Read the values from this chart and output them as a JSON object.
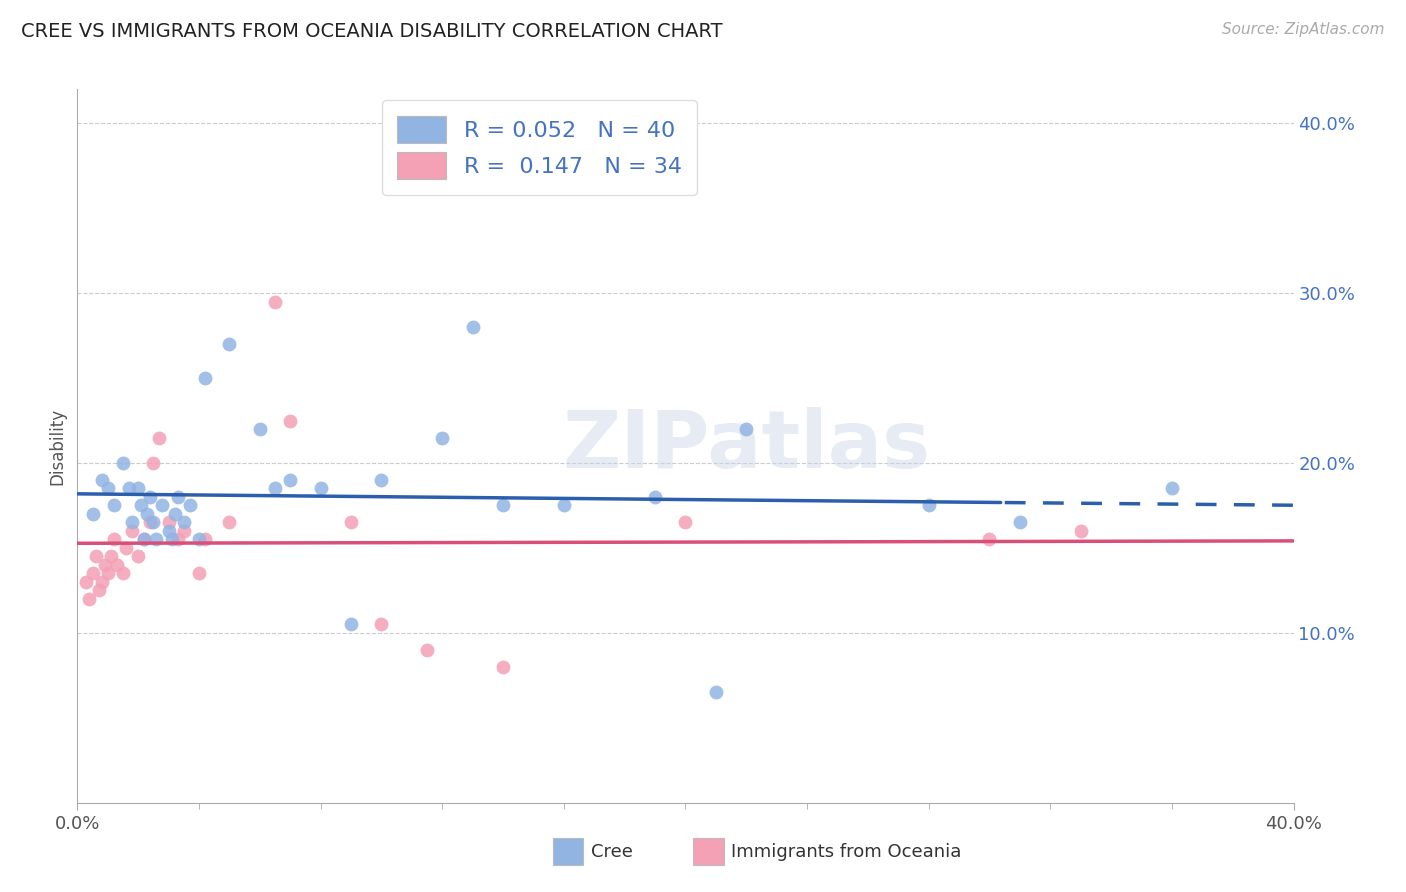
{
  "title": "CREE VS IMMIGRANTS FROM OCEANIA DISABILITY CORRELATION CHART",
  "source": "Source: ZipAtlas.com",
  "ylabel": "Disability",
  "xlim": [
    0.0,
    0.4
  ],
  "ylim": [
    0.0,
    0.42
  ],
  "yticks": [
    0.1,
    0.2,
    0.3,
    0.4
  ],
  "ytick_labels": [
    "10.0%",
    "20.0%",
    "30.0%",
    "40.0%"
  ],
  "cree_color": "#92b4e3",
  "immigrants_color": "#f4a0b5",
  "cree_line_color": "#2b5fad",
  "immigrants_line_color": "#d94f7a",
  "cree_R": 0.052,
  "cree_N": 40,
  "immigrants_R": 0.147,
  "immigrants_N": 34,
  "watermark": "ZIPatlas",
  "cree_x": [
    0.005,
    0.008,
    0.01,
    0.012,
    0.015,
    0.017,
    0.018,
    0.02,
    0.021,
    0.022,
    0.023,
    0.024,
    0.025,
    0.026,
    0.028,
    0.03,
    0.031,
    0.032,
    0.033,
    0.035,
    0.037,
    0.04,
    0.042,
    0.05,
    0.06,
    0.065,
    0.07,
    0.08,
    0.09,
    0.1,
    0.12,
    0.13,
    0.14,
    0.16,
    0.19,
    0.21,
    0.22,
    0.28,
    0.31,
    0.36
  ],
  "cree_y": [
    0.17,
    0.19,
    0.185,
    0.175,
    0.2,
    0.185,
    0.165,
    0.185,
    0.175,
    0.155,
    0.17,
    0.18,
    0.165,
    0.155,
    0.175,
    0.16,
    0.155,
    0.17,
    0.18,
    0.165,
    0.175,
    0.155,
    0.25,
    0.27,
    0.22,
    0.185,
    0.19,
    0.185,
    0.105,
    0.19,
    0.215,
    0.28,
    0.175,
    0.175,
    0.18,
    0.065,
    0.22,
    0.175,
    0.165,
    0.185
  ],
  "immigrants_x": [
    0.003,
    0.004,
    0.005,
    0.006,
    0.007,
    0.008,
    0.009,
    0.01,
    0.011,
    0.012,
    0.013,
    0.015,
    0.016,
    0.018,
    0.02,
    0.022,
    0.024,
    0.025,
    0.027,
    0.03,
    0.033,
    0.035,
    0.04,
    0.042,
    0.05,
    0.065,
    0.07,
    0.09,
    0.1,
    0.115,
    0.14,
    0.2,
    0.3,
    0.33
  ],
  "immigrants_y": [
    0.13,
    0.12,
    0.135,
    0.145,
    0.125,
    0.13,
    0.14,
    0.135,
    0.145,
    0.155,
    0.14,
    0.135,
    0.15,
    0.16,
    0.145,
    0.155,
    0.165,
    0.2,
    0.215,
    0.165,
    0.155,
    0.16,
    0.135,
    0.155,
    0.165,
    0.295,
    0.225,
    0.165,
    0.105,
    0.09,
    0.08,
    0.165,
    0.155,
    0.16
  ]
}
